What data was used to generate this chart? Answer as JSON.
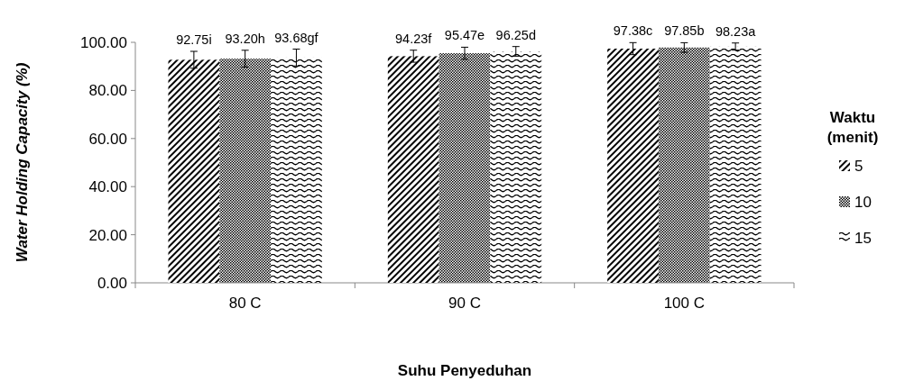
{
  "chart_data": {
    "type": "bar",
    "xlabel": "Suhu Penyeduhan",
    "ylabel": "Water Holding Capacity (%)",
    "legend_title": "Waktu (menit)",
    "categories": [
      "80 C",
      "90 C",
      "100 C"
    ],
    "series": [
      {
        "name": "5",
        "color": "#000000",
        "values": [
          92.75,
          94.23,
          97.38
        ],
        "errors": [
          3.5,
          2.5,
          2.5
        ],
        "value_labels": [
          "92.75i",
          "94.23f",
          "97.38c"
        ]
      },
      {
        "name": "10",
        "color": "#000000",
        "values": [
          93.2,
          95.47,
          97.85
        ],
        "errors": [
          3.5,
          2.5,
          2
        ],
        "value_labels": [
          "93.20h",
          "95.47e",
          "97.85b"
        ]
      },
      {
        "name": "15",
        "color": "#000000",
        "values": [
          93.68,
          96.25,
          98.23
        ],
        "errors": [
          3.5,
          2,
          1.5
        ],
        "value_labels": [
          "93.68gf",
          "96.25d",
          "98.23a"
        ]
      }
    ],
    "ylim": [
      0,
      100
    ],
    "yticks": [
      {
        "value": 0,
        "label": "0.00"
      },
      {
        "value": 20,
        "label": "20.00"
      },
      {
        "value": 40,
        "label": "40.00"
      },
      {
        "value": 60,
        "label": "60.00"
      },
      {
        "value": 80,
        "label": "80.00"
      },
      {
        "value": 100,
        "label": "100.00"
      }
    ],
    "grid": false,
    "legend": "right"
  }
}
